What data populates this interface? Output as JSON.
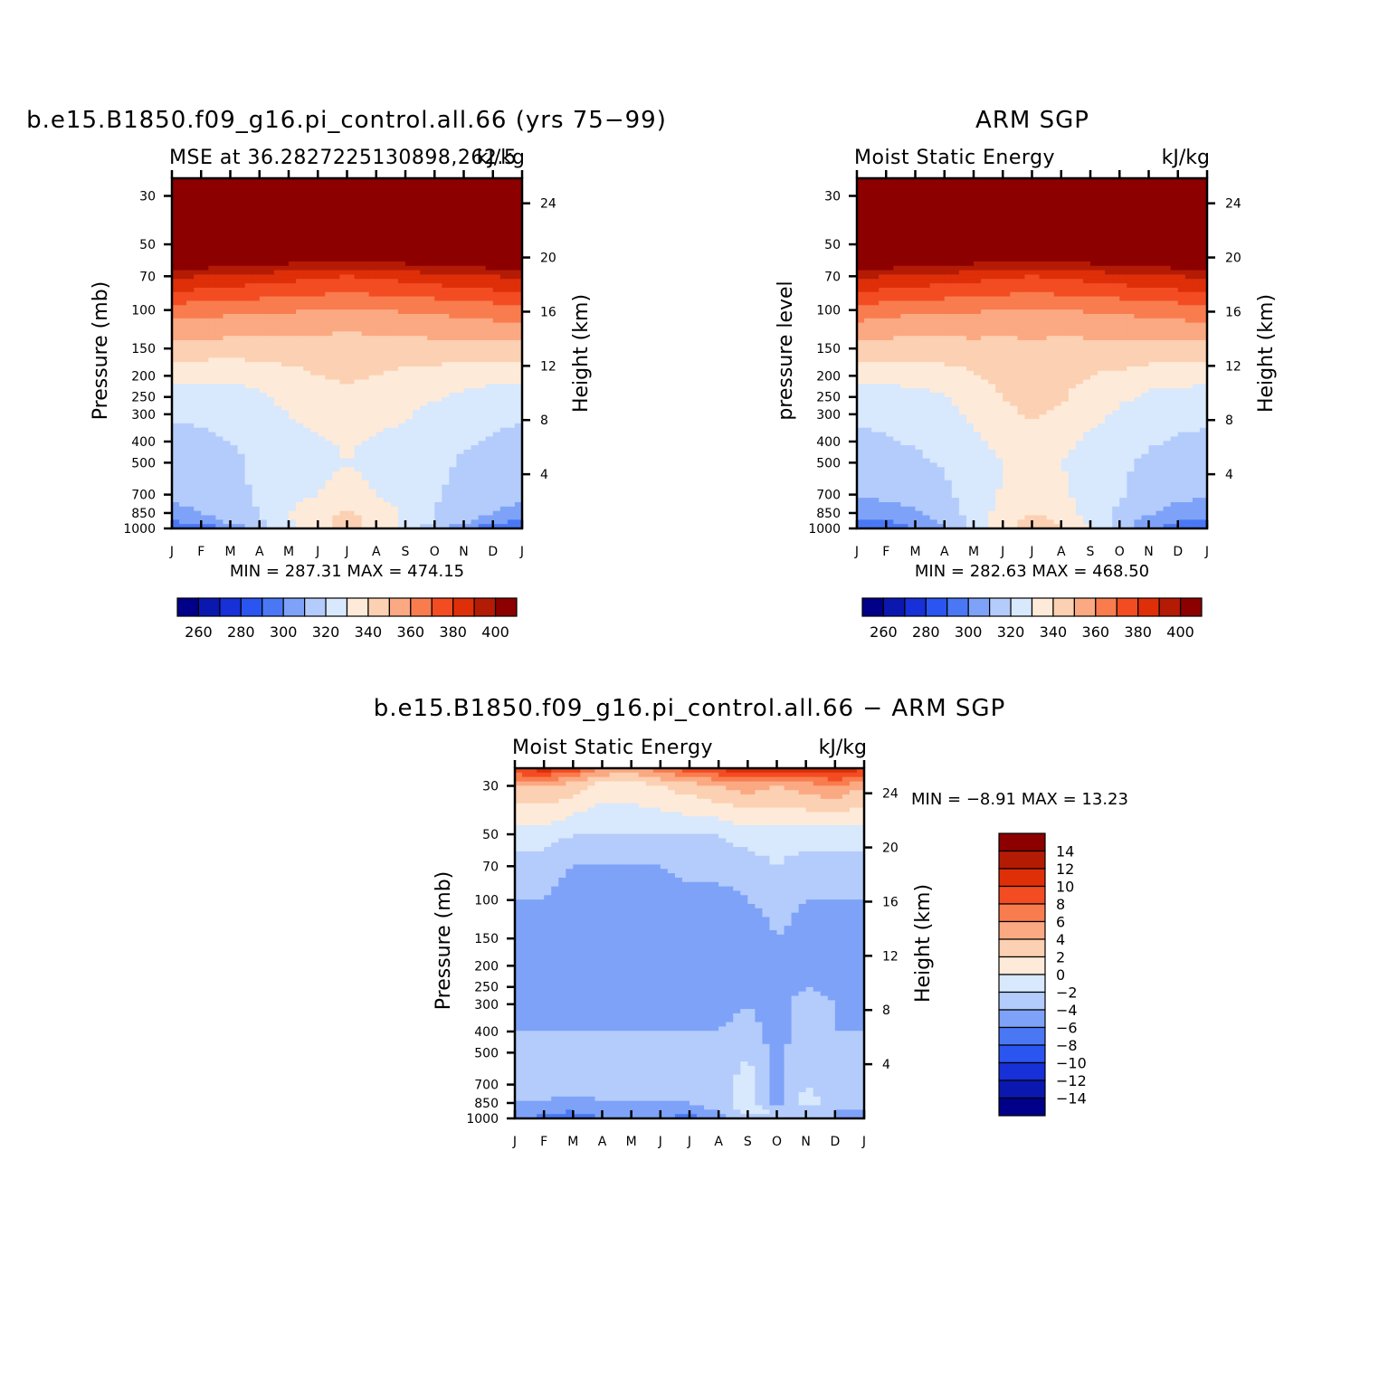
{
  "colors": {
    "absolute": [
      "#000088",
      "#0a18b0",
      "#1730d8",
      "#2a55f0",
      "#4a78f5",
      "#7ea2f8",
      "#b4ccfb",
      "#d8e8fd",
      "#feead8",
      "#fcd0b2",
      "#fba982",
      "#f97c4f",
      "#f34c22",
      "#de2f09",
      "#b41b05",
      "#8c0000"
    ],
    "difference": [
      "#000088",
      "#0a18b0",
      "#1730d8",
      "#2a55f0",
      "#4a78f5",
      "#7ea2f8",
      "#b4ccfb",
      "#d8e8fd",
      "#feead8",
      "#fcd0b2",
      "#fba982",
      "#f97c4f",
      "#f34c22",
      "#de2f09",
      "#b41b05",
      "#8c0000"
    ]
  },
  "chart_data": [
    {
      "type": "heatmap",
      "title": "b.e15.B1850.f09_g16.pi_control.all.66 (yrs 75−99)",
      "subtitle_left": "MSE at 36.2827225130898,262.5",
      "subtitle_right": "kJ/kg",
      "ylabel": "Pressure (mb)",
      "ylabel_right": "Height (km)",
      "x_ticks": [
        "J",
        "F",
        "M",
        "A",
        "M",
        "J",
        "J",
        "A",
        "S",
        "O",
        "N",
        "D",
        "J"
      ],
      "y_ticks": [
        "30",
        "50",
        "70",
        "100",
        "150",
        "200",
        "250",
        "300",
        "400",
        "500",
        "700",
        "850",
        "1000"
      ],
      "y_right_ticks": [
        "24",
        "20",
        "16",
        "12",
        "8",
        "4"
      ],
      "ylim": [
        1000,
        25
      ],
      "stats": "MIN = 287.31 MAX = 474.15",
      "colorbar_labels": [
        "260",
        "280",
        "300",
        "320",
        "340",
        "360",
        "380",
        "400"
      ],
      "x": [
        0,
        1,
        2,
        3,
        4,
        5,
        6,
        7,
        8,
        9,
        10,
        11,
        12
      ],
      "levels_mb": [
        1000,
        925,
        850,
        700,
        500,
        400,
        300,
        250,
        200,
        150,
        100,
        70,
        50,
        30,
        25
      ],
      "values": [
        [
          285,
          292,
          303,
          316,
          328,
          338,
          342,
          338,
          326,
          313,
          300,
          290,
          285
        ],
        [
          300,
          306,
          312,
          319,
          328,
          338,
          342,
          338,
          327,
          320,
          313,
          304,
          300
        ],
        [
          307,
          310,
          313,
          320,
          330,
          338,
          341,
          338,
          328,
          320,
          316,
          310,
          307
        ],
        [
          312,
          313,
          316,
          322,
          326,
          330,
          333,
          330,
          325,
          321,
          317,
          314,
          312
        ],
        [
          314,
          315,
          318,
          322,
          325,
          328,
          330,
          328,
          324,
          322,
          319,
          316,
          314
        ],
        [
          317,
          318,
          320,
          323,
          326,
          329,
          331,
          329,
          326,
          324,
          321,
          319,
          317
        ],
        [
          321,
          322,
          323,
          326,
          330,
          334,
          335,
          334,
          331,
          327,
          325,
          323,
          321
        ],
        [
          325,
          325,
          326,
          328,
          333,
          337,
          338,
          337,
          334,
          331,
          328,
          326,
          325
        ],
        [
          332,
          332,
          332,
          334,
          337,
          340,
          341,
          340,
          338,
          336,
          334,
          333,
          332
        ],
        [
          347,
          346,
          345,
          345,
          345,
          344,
          344,
          344,
          345,
          346,
          347,
          347,
          347
        ],
        [
          365,
          364,
          362,
          362,
          361,
          360,
          359,
          360,
          361,
          362,
          363,
          365,
          365
        ],
        [
          392,
          390,
          388,
          386,
          384,
          382,
          380,
          382,
          384,
          386,
          388,
          390,
          392
        ],
        [
          430,
          430,
          428,
          426,
          424,
          420,
          418,
          420,
          424,
          426,
          428,
          430,
          430
        ],
        [
          455,
          455,
          454,
          452,
          450,
          448,
          446,
          448,
          450,
          452,
          454,
          455,
          455
        ],
        [
          470,
          470,
          469,
          468,
          466,
          465,
          464,
          465,
          466,
          468,
          469,
          470,
          470
        ]
      ]
    },
    {
      "type": "heatmap",
      "title": "ARM SGP",
      "subtitle_left": "Moist Static Energy",
      "subtitle_right": "kJ/kg",
      "ylabel": "pressure level",
      "ylabel_right": "Height (km)",
      "x_ticks": [
        "J",
        "F",
        "M",
        "A",
        "M",
        "J",
        "J",
        "A",
        "S",
        "O",
        "N",
        "D",
        "J"
      ],
      "y_ticks": [
        "30",
        "50",
        "70",
        "100",
        "150",
        "200",
        "250",
        "300",
        "400",
        "500",
        "700",
        "850",
        "1000"
      ],
      "y_right_ticks": [
        "24",
        "20",
        "16",
        "12",
        "8",
        "4"
      ],
      "ylim": [
        1000,
        25
      ],
      "stats": "MIN = 282.63 MAX = 468.50",
      "colorbar_labels": [
        "260",
        "280",
        "300",
        "320",
        "340",
        "360",
        "380",
        "400"
      ],
      "x": [
        0,
        1,
        2,
        3,
        4,
        5,
        6,
        7,
        8,
        9,
        10,
        11,
        12
      ],
      "levels_mb": [
        1000,
        925,
        850,
        700,
        500,
        400,
        300,
        250,
        200,
        150,
        100,
        70,
        50,
        30,
        25
      ],
      "values": [
        [
          292,
          294,
          300,
          310,
          322,
          337,
          346,
          342,
          330,
          315,
          302,
          295,
          292
        ],
        [
          298,
          300,
          303,
          312,
          323,
          336,
          344,
          338,
          328,
          317,
          306,
          300,
          298
        ],
        [
          305,
          306,
          309,
          314,
          324,
          334,
          340,
          336,
          326,
          318,
          311,
          307,
          305
        ],
        [
          311,
          312,
          314,
          318,
          324,
          331,
          334,
          332,
          326,
          321,
          315,
          312,
          311
        ],
        [
          315,
          316,
          318,
          321,
          325,
          330,
          332,
          330,
          326,
          322,
          318,
          316,
          315
        ],
        [
          318,
          319,
          321,
          324,
          328,
          333,
          335,
          333,
          328,
          325,
          321,
          319,
          318
        ],
        [
          322,
          322,
          323,
          327,
          332,
          339,
          341,
          339,
          333,
          328,
          325,
          323,
          322
        ],
        [
          326,
          326,
          327,
          329,
          335,
          340,
          341,
          341,
          336,
          332,
          328,
          327,
          326
        ],
        [
          333,
          333,
          334,
          336,
          339,
          343,
          344,
          343,
          340,
          338,
          335,
          334,
          333
        ],
        [
          346,
          345,
          345,
          345,
          346,
          346,
          347,
          346,
          346,
          347,
          347,
          346,
          346
        ],
        [
          366,
          364,
          362,
          362,
          361,
          360,
          359,
          360,
          361,
          362,
          363,
          365,
          366
        ],
        [
          392,
          390,
          388,
          386,
          384,
          382,
          380,
          382,
          384,
          386,
          388,
          390,
          392
        ],
        [
          430,
          430,
          428,
          426,
          424,
          420,
          418,
          420,
          424,
          426,
          428,
          430,
          430
        ],
        [
          455,
          455,
          454,
          452,
          450,
          448,
          446,
          448,
          450,
          452,
          454,
          455,
          455
        ],
        [
          468,
          468,
          467,
          466,
          464,
          463,
          462,
          463,
          464,
          466,
          467,
          468,
          468
        ]
      ]
    },
    {
      "type": "heatmap",
      "title": "b.e15.B1850.f09_g16.pi_control.all.66 − ARM SGP",
      "subtitle_left": "Moist Static Energy",
      "subtitle_right": "kJ/kg",
      "ylabel": "Pressure (mb)",
      "ylabel_right": "Height (km)",
      "x_ticks": [
        "J",
        "F",
        "M",
        "A",
        "M",
        "J",
        "J",
        "A",
        "S",
        "O",
        "N",
        "D",
        "J"
      ],
      "y_ticks": [
        "30",
        "50",
        "70",
        "100",
        "150",
        "200",
        "250",
        "300",
        "400",
        "500",
        "700",
        "850",
        "1000"
      ],
      "y_right_ticks": [
        "24",
        "20",
        "16",
        "12",
        "8",
        "4"
      ],
      "ylim": [
        1000,
        25
      ],
      "stats": "MIN =  −8.91  MAX =   13.23",
      "colorbar_labels": [
        "14",
        "12",
        "10",
        "8",
        "6",
        "4",
        "2",
        "0",
        "−2",
        "−4",
        "−6",
        "−8",
        "−10",
        "−12",
        "−14"
      ],
      "x": [
        0,
        1,
        2,
        3,
        4,
        5,
        6,
        7,
        8,
        9,
        10,
        11,
        12
      ],
      "levels_mb": [
        1000,
        925,
        850,
        700,
        500,
        400,
        300,
        250,
        200,
        150,
        100,
        70,
        50,
        30,
        25
      ],
      "values": [
        [
          -5,
          -7,
          -7,
          -6,
          -5,
          -6,
          -7,
          -5,
          -3,
          -3,
          -4,
          -4,
          -5
        ],
        [
          -4,
          -5,
          -6,
          -5,
          -4,
          -5,
          -5,
          -4,
          -1,
          -2,
          -3,
          -4,
          -4
        ],
        [
          -4,
          -4,
          -5,
          -4,
          -4,
          -4,
          -4,
          -3,
          -1,
          -5,
          -1,
          -3,
          -4
        ],
        [
          -3,
          -3,
          -3,
          -3,
          -3,
          -3,
          -3,
          -3,
          -1,
          -5,
          -2,
          -3,
          -3
        ],
        [
          -3,
          -3,
          -4,
          -4,
          -4,
          -3,
          -3,
          -4,
          -2,
          -5,
          -2,
          -3,
          -3
        ],
        [
          -4,
          -4,
          -4,
          -4,
          -4,
          -4,
          -4,
          -4,
          -3,
          -5,
          -3,
          -4,
          -4
        ],
        [
          -5,
          -5,
          -5,
          -5,
          -5,
          -5,
          -5,
          -5,
          -4,
          -5,
          -3,
          -4,
          -5
        ],
        [
          -5,
          -5,
          -5,
          -5,
          -5,
          -5,
          -5,
          -5,
          -5,
          -5,
          -4,
          -5,
          -5
        ],
        [
          -6,
          -6,
          -5,
          -5,
          -5,
          -5,
          -5,
          -5,
          -6,
          -5,
          -5,
          -5,
          -6
        ],
        [
          -6,
          -5,
          -5,
          -6,
          -5,
          -5,
          -5,
          -5,
          -6,
          -4,
          -5,
          -5,
          -6
        ],
        [
          -4,
          -4,
          -5,
          -5,
          -5,
          -5,
          -5,
          -5,
          -4,
          -3,
          -4,
          -4,
          -4
        ],
        [
          -3,
          -3,
          -4,
          -4,
          -4,
          -4,
          -3,
          -3,
          -3,
          -2,
          -3,
          -3,
          -3
        ],
        [
          -1,
          -1,
          -2,
          -2,
          -2,
          -2,
          -2,
          -2,
          -1,
          -1,
          -1,
          -1,
          -1
        ],
        [
          4,
          4,
          3,
          1,
          1,
          2,
          3,
          4,
          5,
          4,
          5,
          6,
          4
        ],
        [
          10,
          11,
          9,
          6,
          5,
          7,
          9,
          10,
          12,
          11,
          11,
          12,
          10
        ]
      ]
    }
  ]
}
